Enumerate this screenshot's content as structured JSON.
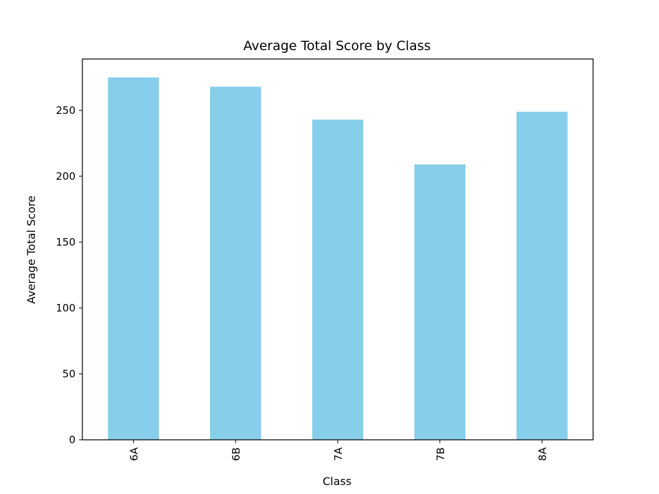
{
  "chart_data": {
    "type": "bar",
    "title": "Average Total Score by Class",
    "xlabel": "Class",
    "ylabel": "Average Total Score",
    "categories": [
      "6A",
      "6B",
      "7A",
      "7B",
      "8A"
    ],
    "values": [
      275,
      268,
      243,
      209,
      249
    ],
    "ylim": [
      0,
      289
    ],
    "yticks": [
      0,
      50,
      100,
      150,
      200,
      250
    ],
    "bar_color": "#87ceeb",
    "grid": false,
    "legend": "none"
  }
}
